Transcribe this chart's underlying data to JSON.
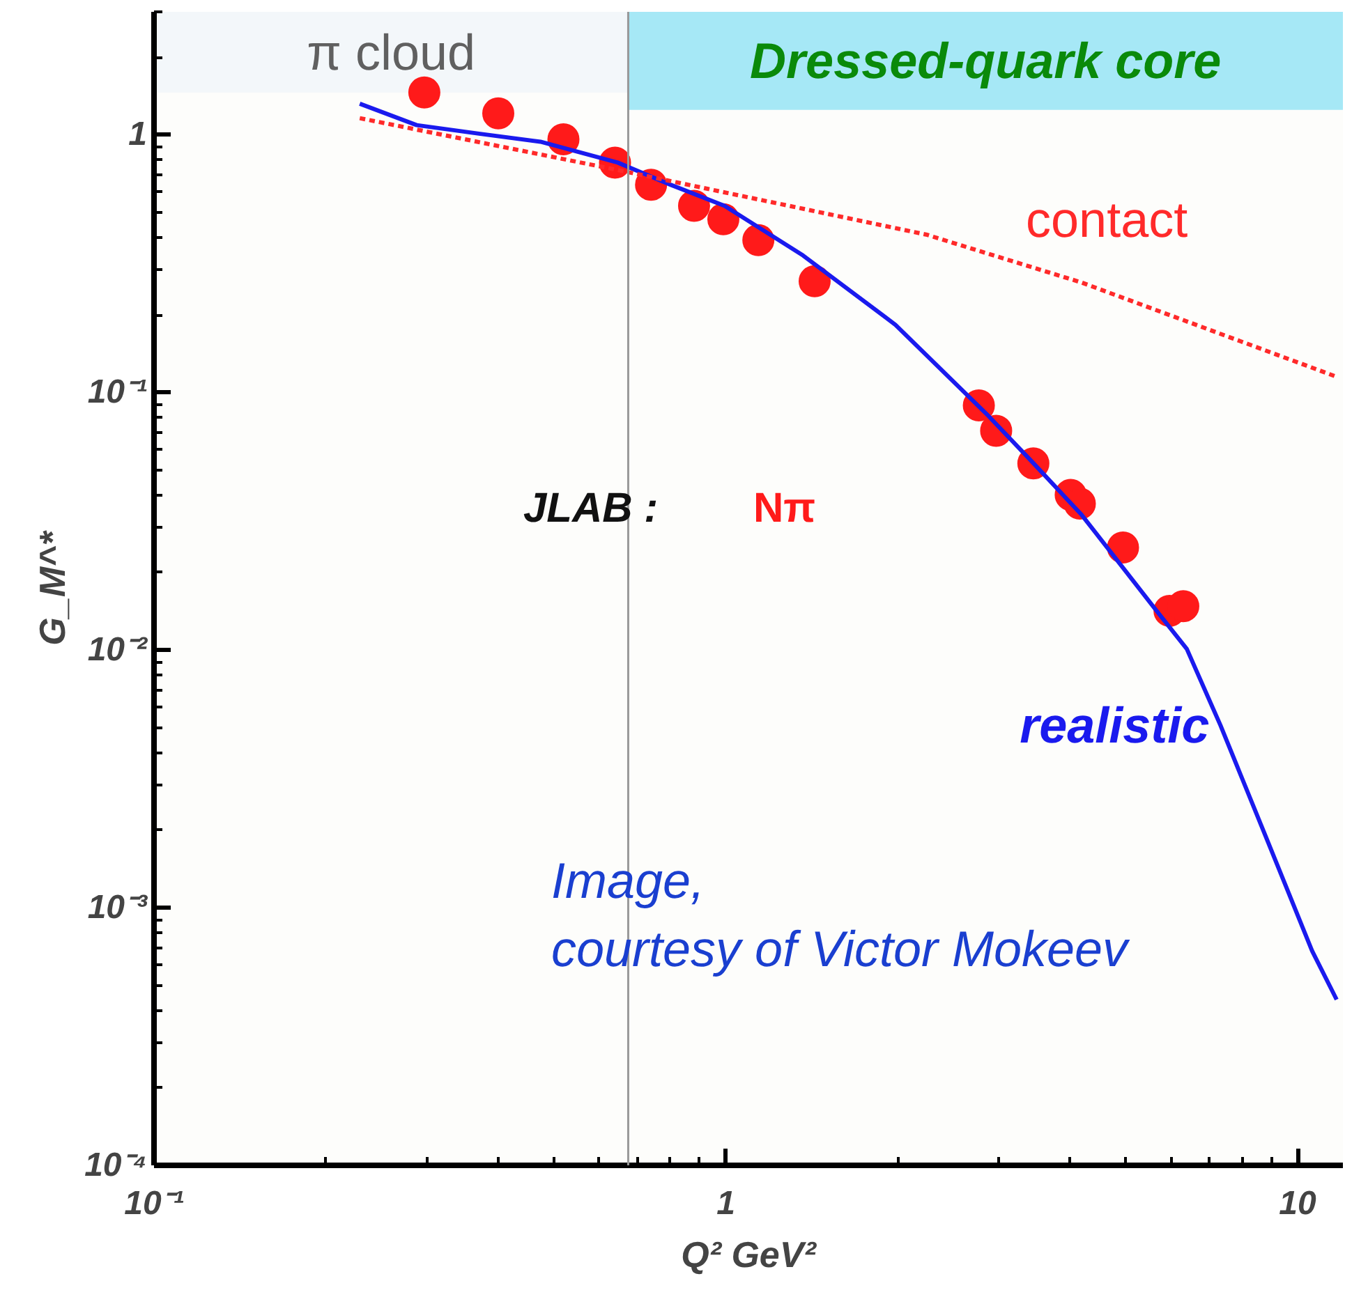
{
  "chart_data": {
    "type": "scatter",
    "xlabel": "Q² GeV²",
    "ylabel": "G_M^*",
    "log": "xy",
    "grid": false,
    "xlim": [
      0.1,
      12
    ],
    "ylim": [
      0.0001,
      3
    ],
    "xticks": [
      {
        "value": 0.1,
        "label": "10⁻¹"
      },
      1,
      10
    ],
    "yticks": [
      {
        "value": 0.0001,
        "label": "10⁻⁴"
      },
      {
        "value": 0.001,
        "label": "10⁻³"
      },
      {
        "value": 0.01,
        "label": "10⁻²"
      },
      {
        "value": 0.1,
        "label": "10⁻¹"
      },
      1
    ],
    "series": [
      {
        "name": "Nπ",
        "marker": "circle",
        "color": "#ff1a1a",
        "x": [
          0.297,
          0.4,
          0.52,
          0.64,
          0.74,
          0.88,
          0.99,
          1.14,
          1.43,
          2.77,
          2.97,
          3.45,
          4.01,
          4.16,
          4.95,
          5.97,
          6.31
        ],
        "values": [
          1.46,
          1.21,
          0.96,
          0.78,
          0.64,
          0.53,
          0.47,
          0.39,
          0.27,
          0.089,
          0.071,
          0.053,
          0.04,
          0.037,
          0.025,
          0.0142,
          0.0148
        ]
      },
      {
        "name": "realistic",
        "type": "line",
        "line_style": "solid",
        "color": "#1a1aee",
        "x": [
          0.229,
          0.288,
          0.37,
          0.474,
          0.647,
          0.8,
          0.995,
          1.365,
          1.98,
          2.88,
          3.4,
          4.19,
          5.71,
          6.4,
          7.33,
          8.83,
          10.6,
          11.7
        ],
        "values": [
          1.32,
          1.09,
          1.01,
          0.94,
          0.78,
          0.64,
          0.53,
          0.34,
          0.183,
          0.081,
          0.055,
          0.0335,
          0.0139,
          0.0101,
          0.0051,
          0.00185,
          0.00068,
          0.00044
        ]
      },
      {
        "name": "contact",
        "type": "line",
        "line_style": "dashed",
        "color": "#ff2a2a",
        "x": [
          0.229,
          0.647,
          2.24,
          4.19,
          11.7
        ],
        "values": [
          1.16,
          0.73,
          0.41,
          0.267,
          0.115
        ]
      }
    ],
    "ref_lines": [
      {
        "axis": "x",
        "value": 0.675,
        "color": "#999999"
      }
    ],
    "bands": [
      {
        "axis": "x",
        "from": 0.1,
        "to": 0.675,
        "label": "π cloud",
        "color": "#f3f7fa"
      },
      {
        "axis": "x",
        "from": 0.675,
        "to": 12,
        "label": "Dressed-quark core",
        "color": "#a6e8f6"
      }
    ],
    "annotations": [
      "JLAB :",
      "Image,\ncourtesy of Victor Mokeev"
    ]
  }
}
